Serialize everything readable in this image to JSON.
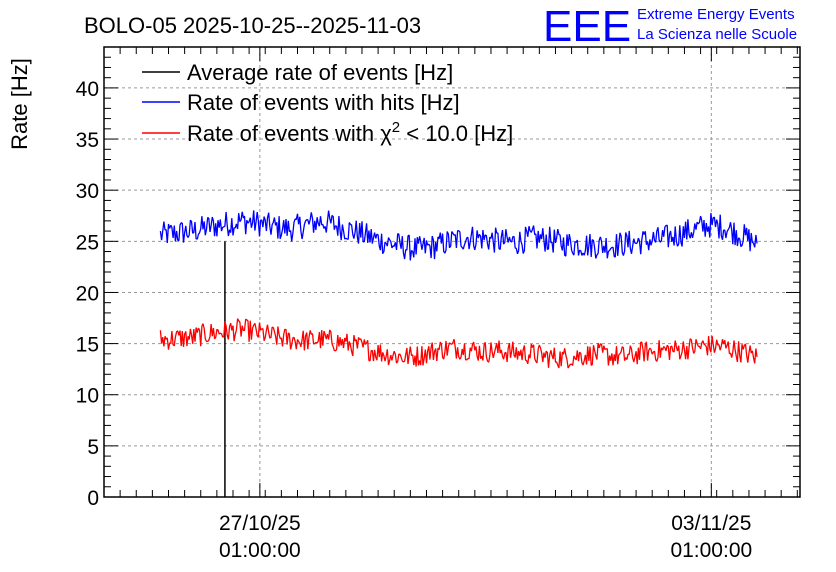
{
  "chart_data": {
    "type": "line",
    "title": "BOLO-05 2025-10-25--2025-11-03",
    "xlabel": "",
    "ylabel": "Rate [Hz]",
    "ylim": [
      0,
      44
    ],
    "yticks": [
      0,
      5,
      10,
      15,
      20,
      25,
      30,
      35,
      40
    ],
    "xlim": [
      "2025-10-24 15:00",
      "2025-11-04 10:00"
    ],
    "xticks": [
      {
        "date": "2025-10-27 01:00",
        "label_date": "27/10/25",
        "label_time": "01:00:00"
      },
      {
        "date": "2025-11-03 01:00",
        "label_date": "03/11/25",
        "label_time": "01:00:00"
      }
    ],
    "grid": true,
    "legend_position": "top-left",
    "x": [
      "2025-10-25 12:00",
      "2025-10-25 18:00",
      "2025-10-26 00:00",
      "2025-10-26 06:00",
      "2025-10-26 12:00",
      "2025-10-26 18:00",
      "2025-10-27 00:00",
      "2025-10-27 06:00",
      "2025-10-27 12:00",
      "2025-10-27 18:00",
      "2025-10-28 00:00",
      "2025-10-28 06:00",
      "2025-10-28 12:00",
      "2025-10-28 18:00",
      "2025-10-29 00:00",
      "2025-10-29 06:00",
      "2025-10-29 12:00",
      "2025-10-29 18:00",
      "2025-10-30 00:00",
      "2025-10-30 06:00",
      "2025-10-30 12:00",
      "2025-10-30 18:00",
      "2025-10-31 00:00",
      "2025-10-31 06:00",
      "2025-10-31 12:00",
      "2025-10-31 18:00",
      "2025-11-01 00:00",
      "2025-11-01 06:00",
      "2025-11-01 12:00",
      "2025-11-01 18:00",
      "2025-11-02 00:00",
      "2025-11-02 06:00",
      "2025-11-02 12:00",
      "2025-11-02 18:00",
      "2025-11-03 00:00",
      "2025-11-03 06:00",
      "2025-11-03 12:00",
      "2025-11-03 18:00"
    ],
    "series": [
      {
        "name": "Average rate of events [Hz]",
        "color": "#000000",
        "vline": {
          "date": "2025-10-26 12:00",
          "from": 0,
          "to": 25
        }
      },
      {
        "name": "Rate of events with hits [Hz]",
        "color": "#0000ff",
        "noise": 1.3,
        "values": [
          25.6,
          25.8,
          26.0,
          26.4,
          26.7,
          27.0,
          26.8,
          26.4,
          26.2,
          26.6,
          27.0,
          26.5,
          26.0,
          25.4,
          24.9,
          24.5,
          24.2,
          24.5,
          25.0,
          25.4,
          25.3,
          25.0,
          24.9,
          25.3,
          25.2,
          24.8,
          24.7,
          24.6,
          24.6,
          24.8,
          25.0,
          25.2,
          25.6,
          26.1,
          26.6,
          26.4,
          25.6,
          24.8
        ]
      },
      {
        "name": "Rate of events with χ² < 10.0 [Hz]",
        "color": "#ff0000",
        "noise": 1.1,
        "values": [
          15.4,
          15.5,
          15.6,
          16.0,
          16.2,
          16.4,
          16.1,
          15.7,
          15.4,
          15.3,
          15.4,
          15.2,
          14.8,
          14.4,
          14.0,
          13.7,
          13.8,
          14.3,
          14.6,
          14.5,
          14.2,
          14.3,
          14.1,
          14.0,
          13.7,
          13.6,
          13.8,
          14.0,
          13.8,
          13.7,
          14.2,
          14.3,
          14.4,
          14.6,
          14.8,
          14.7,
          14.2,
          13.7
        ]
      }
    ],
    "legend": [
      {
        "text": "Average rate of events [Hz]",
        "color": "#000000"
      },
      {
        "text_pre": "Rate of events with ",
        "text_sym": "χ",
        "text_sup": "2",
        "text_post": " < 10.0 [Hz]",
        "color": "#ff0000"
      },
      {
        "text": "Rate of events with hits [Hz]",
        "color": "#0000ff"
      }
    ]
  },
  "logo": {
    "mark": "EEE",
    "line1": "Extreme Energy Events",
    "line2": "La Scienza nelle Scuole",
    "color": "#0000ff"
  }
}
